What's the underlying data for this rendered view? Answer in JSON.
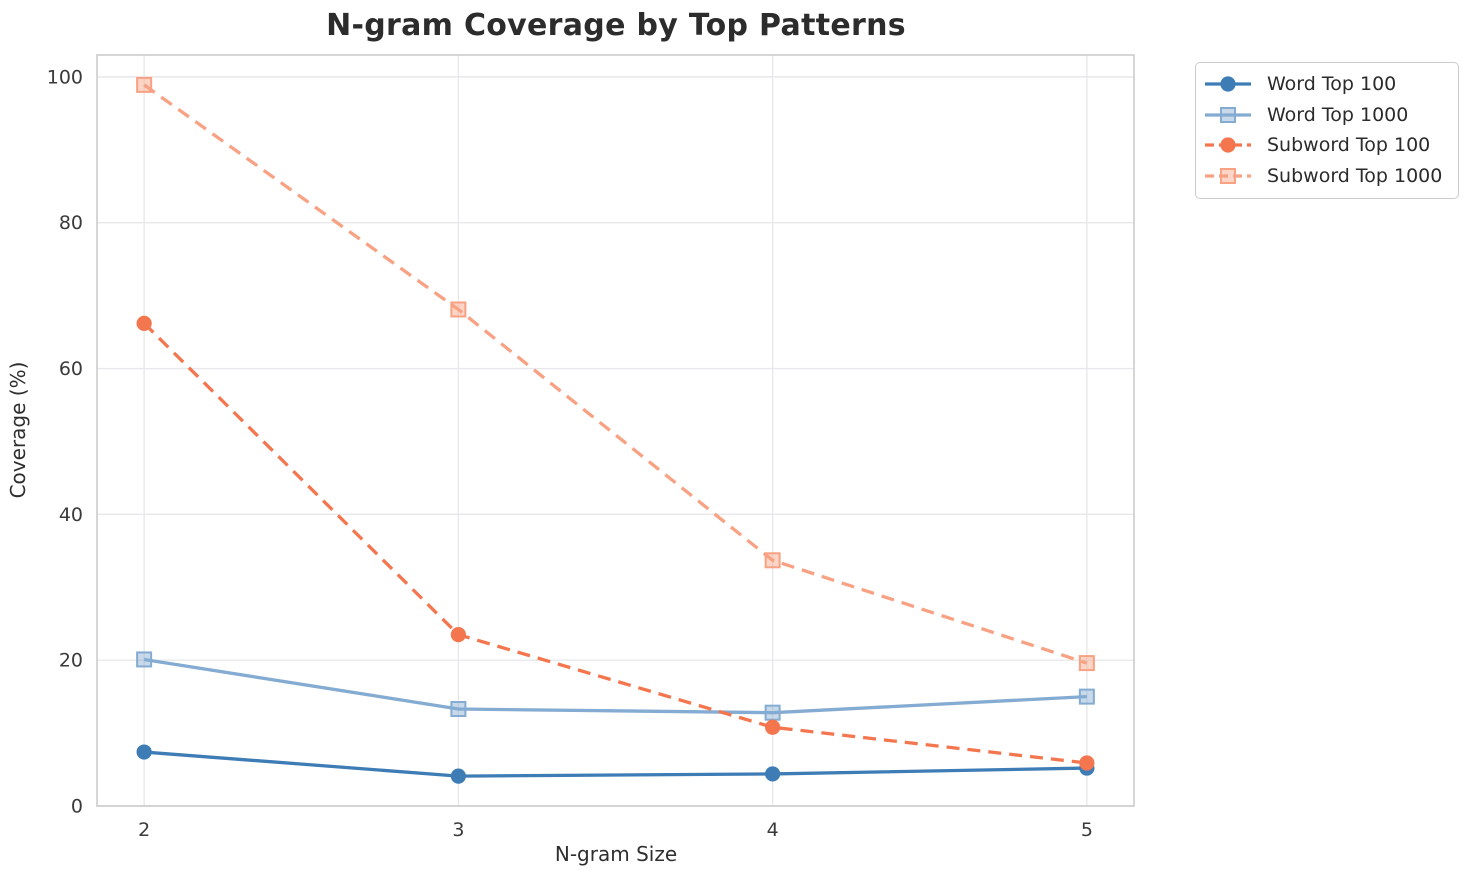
{
  "figure": {
    "title": "N-gram Coverage by Top Patterns",
    "xlabel": "N-gram Size",
    "ylabel": "Coverage (%)"
  },
  "chart_data": {
    "type": "line",
    "title": "N-gram Coverage by Top Patterns",
    "xlabel": "N-gram Size",
    "ylabel": "Coverage (%)",
    "x": [
      2,
      3,
      4,
      5
    ],
    "x_tick_labels": [
      "2",
      "3",
      "4",
      "5"
    ],
    "y_ticks": [
      0,
      20,
      40,
      60,
      80,
      100
    ],
    "y_tick_labels": [
      "0",
      "20",
      "40",
      "60",
      "80",
      "100"
    ],
    "ylim": [
      0,
      103
    ],
    "grid": true,
    "legend_position": "outside-top-right",
    "series": [
      {
        "name": "Word Top 100",
        "values": [
          7.4,
          4.1,
          4.4,
          5.2
        ],
        "color": "#3E7CB6",
        "line_style": "solid",
        "marker": "circle"
      },
      {
        "name": "Word Top 1000",
        "values": [
          20.1,
          13.3,
          12.8,
          15.0
        ],
        "color": "#84ABD1",
        "line_style": "solid",
        "marker": "square"
      },
      {
        "name": "Subword Top 100",
        "values": [
          66.2,
          23.5,
          10.8,
          5.9
        ],
        "color": "#F4764E",
        "line_style": "dashed",
        "marker": "circle"
      },
      {
        "name": "Subword Top 1000",
        "values": [
          98.9,
          68.1,
          33.7,
          19.6
        ],
        "color": "#F8A183",
        "line_style": "dashed",
        "marker": "square"
      }
    ],
    "style": {
      "grid_color": "#e8e8ec",
      "spine_color": "#cccccc",
      "background": "#ffffff"
    }
  }
}
